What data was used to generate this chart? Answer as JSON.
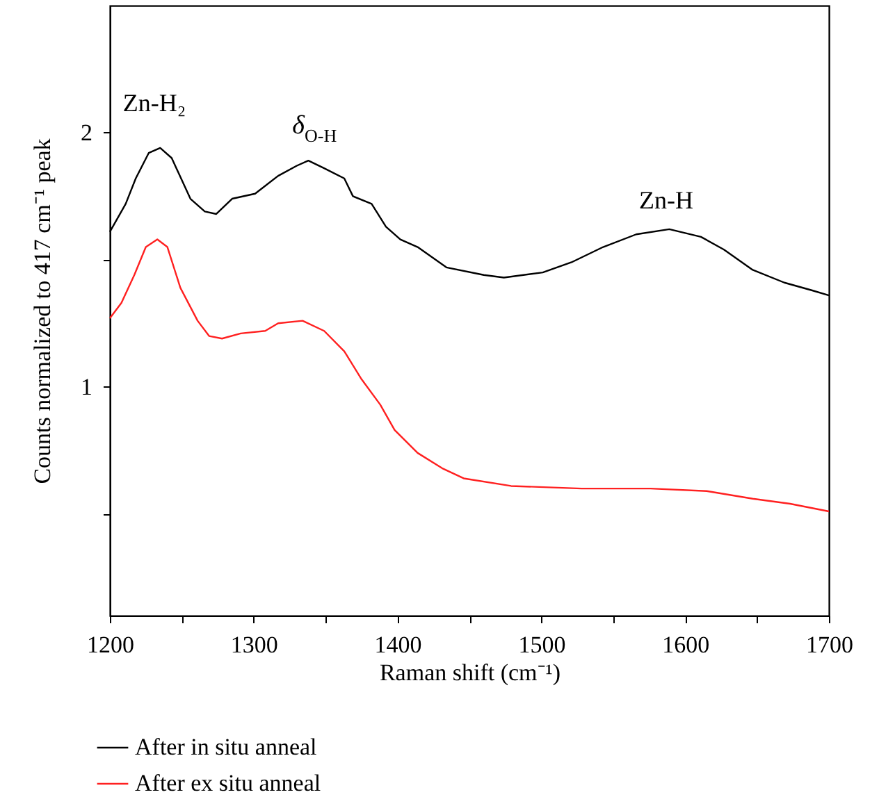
{
  "chart_data": {
    "type": "line",
    "xlabel": "Raman shift (cm⁻¹)",
    "ylabel": "Counts normalized to 417 cm⁻¹ peak",
    "xlim": [
      1200,
      1700
    ],
    "xticks": [
      1200,
      {
        "value": 1250,
        "label": null
      },
      1300,
      {
        "value": 1350,
        "label": null
      },
      1400,
      {
        "value": 1450,
        "label": null
      },
      1500,
      {
        "value": 1550,
        "label": null
      },
      1600,
      {
        "value": 1650,
        "label": null
      },
      1700
    ],
    "ylim": [
      0.1,
      2.5
    ],
    "yticks": [
      {
        "value": 0.5,
        "label": null
      },
      1,
      {
        "value": 1.5,
        "label": null
      },
      2
    ],
    "legend": "bottom left",
    "line_style": "solid",
    "marker": "none",
    "series": [
      {
        "name": "After in situ anneal",
        "color": "#000000",
        "x": [
          1200,
          1211,
          1218,
          1227,
          1235,
          1243,
          1256,
          1266,
          1274,
          1285,
          1301,
          1317,
          1330,
          1338,
          1349,
          1363,
          1369,
          1382,
          1392,
          1402,
          1414,
          1434,
          1460,
          1474,
          1501,
          1521,
          1543,
          1566,
          1589,
          1611,
          1627,
          1647,
          1669,
          1688,
          1700
        ],
        "values": [
          1.61,
          1.72,
          1.82,
          1.92,
          1.94,
          1.9,
          1.74,
          1.69,
          1.68,
          1.74,
          1.76,
          1.83,
          1.87,
          1.89,
          1.86,
          1.82,
          1.75,
          1.72,
          1.63,
          1.58,
          1.55,
          1.47,
          1.44,
          1.43,
          1.45,
          1.49,
          1.55,
          1.6,
          1.62,
          1.59,
          1.54,
          1.46,
          1.41,
          1.38,
          1.36
        ]
      },
      {
        "name": "After ex situ anneal",
        "color": "#ff2020",
        "x": [
          1200,
          1208,
          1217,
          1225,
          1233,
          1240,
          1249,
          1261,
          1269,
          1278,
          1291,
          1308,
          1317,
          1334,
          1349,
          1363,
          1375,
          1388,
          1398,
          1414,
          1431,
          1446,
          1479,
          1528,
          1576,
          1615,
          1647,
          1673,
          1700
        ],
        "values": [
          1.27,
          1.33,
          1.44,
          1.55,
          1.58,
          1.55,
          1.39,
          1.26,
          1.2,
          1.19,
          1.21,
          1.22,
          1.25,
          1.26,
          1.22,
          1.14,
          1.03,
          0.93,
          0.83,
          0.74,
          0.68,
          0.64,
          0.61,
          0.6,
          0.6,
          0.59,
          0.56,
          0.54,
          0.51
        ]
      }
    ],
    "annotations": [
      "Zn-H₂",
      "δ$_{O-H}$",
      "Zn-H"
    ]
  }
}
